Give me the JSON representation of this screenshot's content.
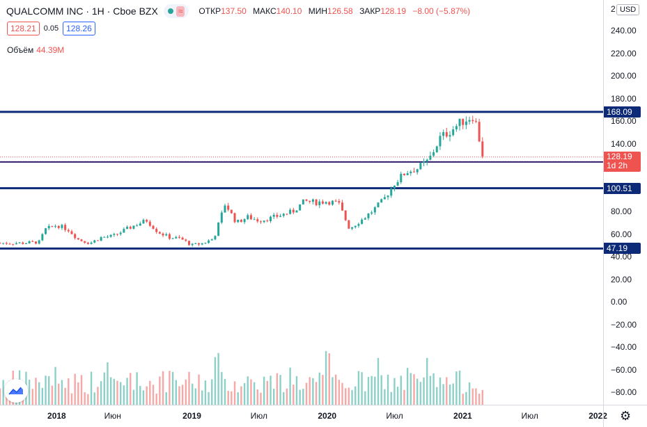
{
  "legend": {
    "symbol": "QUALCOMM INC · 1H · Cboe BZX",
    "open_label": "ОТКР",
    "open_value": "137.50",
    "high_label": "МАКС",
    "high_value": "140.10",
    "low_label": "МИН",
    "low_value": "126.58",
    "close_label": "ЗАКР",
    "close_value": "128.19",
    "change": "−8.00 (−5.87%)",
    "status_color": "#26a69a"
  },
  "bidask": {
    "bid": "128.21",
    "spread": "0.05",
    "ask": "128.26"
  },
  "volume": {
    "label": "Объём",
    "value": "44.39M"
  },
  "price_axis": {
    "currency": "USD",
    "top_cut": "2",
    "ticks": [
      "240.00",
      "220.00",
      "200.00",
      "180.00",
      "160.00",
      "140.00",
      "80.00",
      "60.00",
      "40.00",
      "20.00",
      "0.00",
      "−20.00",
      "−40.00",
      "−60.00",
      "−80.00"
    ]
  },
  "levels": [
    {
      "label": "168.09",
      "value": 168.09,
      "style": "navy"
    },
    {
      "label": "123.79",
      "value": 123.79,
      "style": "purple"
    },
    {
      "label": "100.51",
      "value": 100.51,
      "style": "navy"
    },
    {
      "label": "47.19",
      "value": 47.19,
      "style": "navy"
    }
  ],
  "last_price": {
    "value": 128.19,
    "label": "128.19",
    "countdown": "1d 2h"
  },
  "time_axis": [
    {
      "label": "2018",
      "bold": true,
      "date": "2018-01-01"
    },
    {
      "label": "Июн",
      "bold": false,
      "date": "2018-06-01"
    },
    {
      "label": "2019",
      "bold": true,
      "date": "2019-01-01"
    },
    {
      "label": "Июл",
      "bold": false,
      "date": "2019-07-01"
    },
    {
      "label": "2020",
      "bold": true,
      "date": "2020-01-01"
    },
    {
      "label": "Июл",
      "bold": false,
      "date": "2020-07-01"
    },
    {
      "label": "2021",
      "bold": true,
      "date": "2021-01-01"
    },
    {
      "label": "Июл",
      "bold": false,
      "date": "2021-07-01"
    },
    {
      "label": "2022",
      "bold": true,
      "date": "2022-01-01"
    }
  ],
  "colors": {
    "up": "#26a69a",
    "down": "#ef5350",
    "level": "#0c2a78",
    "level_mid": "#311b6b",
    "vol_up": "#8dd0c8",
    "vol_down": "#f5a8a6"
  },
  "chart_data": {
    "type": "candlestick",
    "symbol": "QUALCOMM INC",
    "ylim": [
      -90,
      250
    ],
    "xlim": [
      "2017-08-01",
      "2022-01-15"
    ],
    "series": [
      {
        "name": "price",
        "points": [
          [
            "2017-08-01",
            52
          ],
          [
            "2017-10-01",
            52
          ],
          [
            "2017-11-15",
            53
          ],
          [
            "2017-12-01",
            64
          ],
          [
            "2018-01-01",
            68
          ],
          [
            "2018-02-01",
            64
          ],
          [
            "2018-03-01",
            55
          ],
          [
            "2018-04-01",
            52
          ],
          [
            "2018-05-01",
            57
          ],
          [
            "2018-06-01",
            58
          ],
          [
            "2018-07-01",
            63
          ],
          [
            "2018-08-01",
            68
          ],
          [
            "2018-09-01",
            72
          ],
          [
            "2018-10-01",
            62
          ],
          [
            "2018-11-01",
            57
          ],
          [
            "2018-12-01",
            56
          ],
          [
            "2019-01-01",
            50
          ],
          [
            "2019-02-01",
            52
          ],
          [
            "2019-03-01",
            56
          ],
          [
            "2019-04-01",
            87
          ],
          [
            "2019-05-01",
            70
          ],
          [
            "2019-06-01",
            75
          ],
          [
            "2019-07-01",
            72
          ],
          [
            "2019-08-01",
            74
          ],
          [
            "2019-09-01",
            77
          ],
          [
            "2019-10-01",
            80
          ],
          [
            "2019-11-01",
            89
          ],
          [
            "2019-12-01",
            88
          ],
          [
            "2020-01-01",
            89
          ],
          [
            "2020-02-01",
            87
          ],
          [
            "2020-03-01",
            65
          ],
          [
            "2020-04-01",
            72
          ],
          [
            "2020-05-01",
            80
          ],
          [
            "2020-06-01",
            90
          ],
          [
            "2020-07-01",
            105
          ],
          [
            "2020-08-01",
            115
          ],
          [
            "2020-09-01",
            118
          ],
          [
            "2020-10-01",
            125
          ],
          [
            "2020-11-01",
            145
          ],
          [
            "2020-12-01",
            152
          ],
          [
            "2021-01-01",
            160
          ],
          [
            "2021-02-01",
            165
          ],
          [
            "2021-02-25",
            128
          ]
        ]
      }
    ],
    "levels": [
      168.09,
      123.79,
      100.51,
      47.19
    ],
    "last": 128.19
  }
}
